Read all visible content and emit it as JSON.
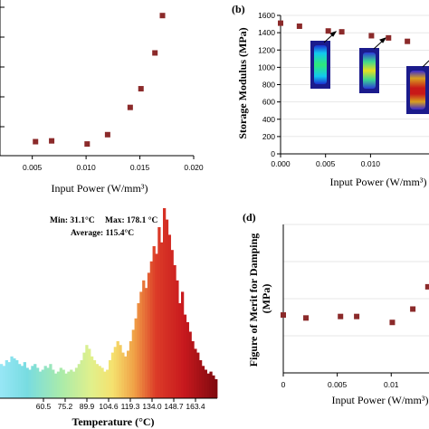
{
  "chart_data": [
    {
      "panel": "a",
      "type": "scatter",
      "title": "",
      "xlabel": "Input Power (W/mm³)",
      "ylabel": "",
      "xlim": [
        0.002,
        0.02
      ],
      "ylim": [
        0,
        1
      ],
      "x_ticks": [
        "0.005",
        "0.010",
        "0.015",
        "0.020"
      ],
      "x_tick_values": [
        0.005,
        0.01,
        0.015,
        0.02
      ],
      "grid": false,
      "marker_color": "#8b2a2a",
      "points": [
        {
          "x": 0.0053,
          "y": 0.09
        },
        {
          "x": 0.0068,
          "y": 0.095
        },
        {
          "x": 0.0101,
          "y": 0.075
        },
        {
          "x": 0.012,
          "y": 0.135
        },
        {
          "x": 0.0141,
          "y": 0.31
        },
        {
          "x": 0.0151,
          "y": 0.43
        },
        {
          "x": 0.0164,
          "y": 0.66
        },
        {
          "x": 0.0171,
          "y": 0.9
        }
      ]
    },
    {
      "panel": "b",
      "panel_label": "(b)",
      "type": "scatter",
      "title": "",
      "xlabel": "Input Power (W/mm³)",
      "ylabel": "Storage Modulus (MPa)",
      "xlim": [
        0,
        0.0165
      ],
      "ylim": [
        0,
        1600
      ],
      "x_ticks": [
        "0.000",
        "0.005",
        "0.010"
      ],
      "x_tick_values": [
        0.0,
        0.005,
        0.01
      ],
      "y_ticks": [
        "0",
        "200",
        "400",
        "600",
        "800",
        "1000",
        "1200",
        "1400",
        "1600"
      ],
      "y_tick_values": [
        0,
        200,
        400,
        600,
        800,
        1000,
        1200,
        1400,
        1600
      ],
      "grid": true,
      "marker_color": "#8b2a2a",
      "points": [
        {
          "x": 0.0,
          "y": 1510
        },
        {
          "x": 0.0021,
          "y": 1475
        },
        {
          "x": 0.0053,
          "y": 1420
        },
        {
          "x": 0.0068,
          "y": 1410
        },
        {
          "x": 0.0101,
          "y": 1365
        },
        {
          "x": 0.012,
          "y": 1340
        },
        {
          "x": 0.0141,
          "y": 1300
        }
      ]
    },
    {
      "panel": "c",
      "type": "bar",
      "title": "",
      "xlabel": "Temperature (°C)",
      "ylabel": "",
      "stats": {
        "min_label": "Min: 31.1°C",
        "max_label": "Max: 178.1 °C",
        "avg_label": "Average: 115.4°C"
      },
      "xlim": [
        31.1,
        178.1
      ],
      "x_ticks": [
        "60.5",
        "75.2",
        "89.9",
        "104.6",
        "119.3",
        "134.0",
        "148.7",
        "163.4"
      ],
      "x_tick_values": [
        60.5,
        75.2,
        89.9,
        104.6,
        119.3,
        134.0,
        148.7,
        163.4
      ],
      "colormap": "rainbow",
      "heights": [
        0.18,
        0.17,
        0.2,
        0.19,
        0.22,
        0.21,
        0.2,
        0.18,
        0.17,
        0.19,
        0.16,
        0.15,
        0.17,
        0.18,
        0.16,
        0.14,
        0.15,
        0.17,
        0.16,
        0.18,
        0.15,
        0.13,
        0.14,
        0.16,
        0.15,
        0.13,
        0.14,
        0.15,
        0.14,
        0.16,
        0.18,
        0.2,
        0.24,
        0.28,
        0.26,
        0.22,
        0.2,
        0.18,
        0.17,
        0.16,
        0.14,
        0.15,
        0.2,
        0.24,
        0.27,
        0.3,
        0.28,
        0.24,
        0.22,
        0.25,
        0.3,
        0.36,
        0.42,
        0.5,
        0.56,
        0.62,
        0.58,
        0.66,
        0.72,
        0.8,
        0.76,
        0.9,
        0.82,
        1.0,
        0.94,
        0.86,
        0.78,
        0.7,
        0.62,
        0.5,
        0.56,
        0.44,
        0.4,
        0.35,
        0.3,
        0.26,
        0.24,
        0.2,
        0.17,
        0.15,
        0.13,
        0.14,
        0.12,
        0.1
      ]
    },
    {
      "panel": "d",
      "panel_label": "(d)",
      "type": "scatter",
      "title": "",
      "xlabel": "Input Power (W/mm³)",
      "ylabel": "Figure of Merit for Damping (MPa)",
      "xlim": [
        0,
        0.0135
      ],
      "ylim": [
        0,
        100
      ],
      "x_ticks": [
        "0",
        "0.005",
        "0.01"
      ],
      "x_tick_values": [
        0,
        0.005,
        0.01
      ],
      "grid": true,
      "marker_color": "#8b2a2a",
      "points": [
        {
          "x": 0.0,
          "y": 39
        },
        {
          "x": 0.0021,
          "y": 37
        },
        {
          "x": 0.0053,
          "y": 38
        },
        {
          "x": 0.0068,
          "y": 38
        },
        {
          "x": 0.0101,
          "y": 34
        },
        {
          "x": 0.012,
          "y": 43
        },
        {
          "x": 0.0134,
          "y": 58
        }
      ]
    }
  ]
}
